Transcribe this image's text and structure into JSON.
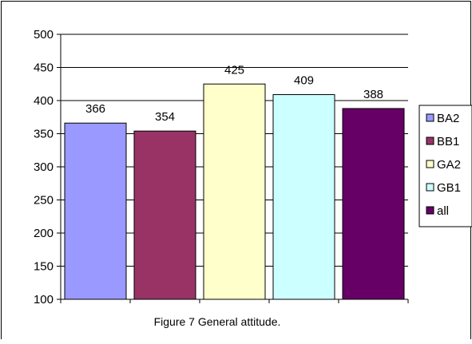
{
  "chart_data": {
    "type": "bar",
    "categories": [
      "BA2",
      "BB1",
      "GA2",
      "GB1",
      "all"
    ],
    "values": [
      366,
      354,
      425,
      409,
      388
    ],
    "data_labels": [
      "366",
      "354",
      "425",
      "409",
      "388"
    ],
    "colors": [
      "#9999ff",
      "#993366",
      "#ffffcc",
      "#ccffff",
      "#660066"
    ],
    "ylim": [
      100,
      500
    ],
    "yticks": [
      100,
      150,
      200,
      250,
      300,
      350,
      400,
      450,
      500
    ],
    "grid": true,
    "legend": {
      "placement": "right",
      "entries": [
        "BA2",
        "BB1",
        "GA2",
        "GB1",
        "all"
      ]
    },
    "caption": "Figure 7 General attitude."
  }
}
